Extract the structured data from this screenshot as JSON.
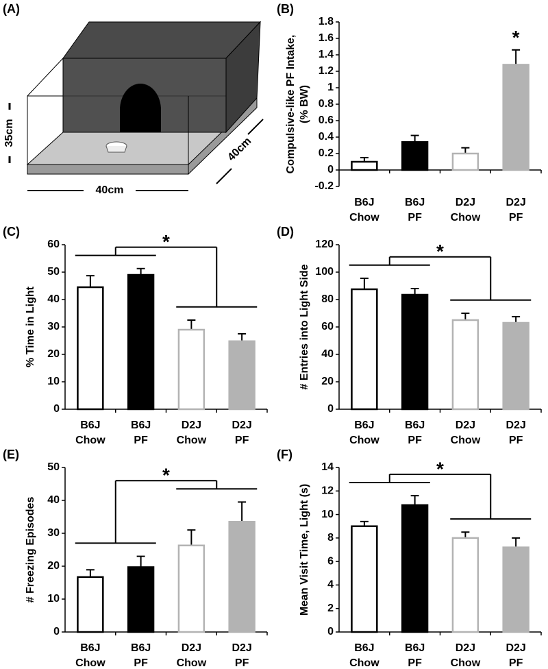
{
  "panel_a": {
    "label": "(A)",
    "height_label": "35cm",
    "width_label": "40cm",
    "depth_label": "40cm"
  },
  "chart_data": [
    {
      "type": "bar",
      "panel": "(B)",
      "ylabel": [
        "Compulsive-like PF Intake,",
        "(% BW)"
      ],
      "categories": [
        [
          "B6J",
          "Chow"
        ],
        [
          "B6J",
          "PF"
        ],
        [
          "D2J",
          "Chow"
        ],
        [
          "D2J",
          "PF"
        ]
      ],
      "values": [
        0.1,
        0.34,
        0.2,
        1.28
      ],
      "errors": [
        0.05,
        0.08,
        0.07,
        0.18
      ],
      "fill_colors": [
        "#ffffff",
        "#000000",
        "#ffffff",
        "#b3b3b3"
      ],
      "edge_colors": [
        "#000000",
        "#000000",
        "#b3b3b3",
        "#b3b3b3"
      ],
      "ylim": [
        -0.2,
        1.8
      ],
      "yticks": [
        -0.2,
        0,
        0.2,
        0.4,
        0.6,
        0.8,
        1,
        1.2,
        1.4,
        1.6,
        1.8
      ],
      "annotation": "*",
      "annotation_target": "bar"
    },
    {
      "type": "bar",
      "panel": "(C)",
      "ylabel": [
        "% Time in Light"
      ],
      "categories": [
        [
          "B6J",
          "Chow"
        ],
        [
          "B6J",
          "PF"
        ],
        [
          "D2J",
          "Chow"
        ],
        [
          "D2J",
          "PF"
        ]
      ],
      "values": [
        44.5,
        49,
        29,
        24.8
      ],
      "errors": [
        4.2,
        2.3,
        3.5,
        2.7
      ],
      "fill_colors": [
        "#ffffff",
        "#000000",
        "#ffffff",
        "#b3b3b3"
      ],
      "edge_colors": [
        "#000000",
        "#000000",
        "#b3b3b3",
        "#b3b3b3"
      ],
      "ylim": [
        0,
        60
      ],
      "yticks": [
        0,
        10,
        20,
        30,
        40,
        50,
        60
      ],
      "annotation": "*",
      "annotation_target": "groups"
    },
    {
      "type": "bar",
      "panel": "(D)",
      "ylabel": [
        "# Entries into Light Side"
      ],
      "categories": [
        [
          "B6J",
          "Chow"
        ],
        [
          "B6J",
          "PF"
        ],
        [
          "D2J",
          "Chow"
        ],
        [
          "D2J",
          "PF"
        ]
      ],
      "values": [
        87.5,
        83.5,
        65,
        63
      ],
      "errors": [
        8,
        4.5,
        5,
        4.5
      ],
      "fill_colors": [
        "#ffffff",
        "#000000",
        "#ffffff",
        "#b3b3b3"
      ],
      "edge_colors": [
        "#000000",
        "#000000",
        "#b3b3b3",
        "#b3b3b3"
      ],
      "ylim": [
        0,
        120
      ],
      "yticks": [
        0,
        20,
        40,
        60,
        80,
        100,
        120
      ],
      "annotation": "*",
      "annotation_target": "groups"
    },
    {
      "type": "bar",
      "panel": "(E)",
      "ylabel": [
        "# Freezing Episodes"
      ],
      "categories": [
        [
          "B6J",
          "Chow"
        ],
        [
          "B6J",
          "PF"
        ],
        [
          "D2J",
          "Chow"
        ],
        [
          "D2J",
          "PF"
        ]
      ],
      "values": [
        16.7,
        19.7,
        26.3,
        33.5
      ],
      "errors": [
        2.2,
        3.3,
        4.7,
        6
      ],
      "fill_colors": [
        "#ffffff",
        "#000000",
        "#ffffff",
        "#b3b3b3"
      ],
      "edge_colors": [
        "#000000",
        "#000000",
        "#b3b3b3",
        "#b3b3b3"
      ],
      "ylim": [
        0,
        50
      ],
      "yticks": [
        0,
        10,
        20,
        30,
        40,
        50
      ],
      "annotation": "*",
      "annotation_target": "groups"
    },
    {
      "type": "bar",
      "panel": "(F)",
      "ylabel": [
        "Mean Visit Time, Light (s)"
      ],
      "categories": [
        [
          "B6J",
          "Chow"
        ],
        [
          "B6J",
          "PF"
        ],
        [
          "D2J",
          "Chow"
        ],
        [
          "D2J",
          "PF"
        ]
      ],
      "values": [
        9,
        10.8,
        8,
        7.2
      ],
      "errors": [
        0.4,
        0.8,
        0.5,
        0.8
      ],
      "fill_colors": [
        "#ffffff",
        "#000000",
        "#ffffff",
        "#b3b3b3"
      ],
      "edge_colors": [
        "#000000",
        "#000000",
        "#b3b3b3",
        "#b3b3b3"
      ],
      "ylim": [
        0,
        14
      ],
      "yticks": [
        0,
        2,
        4,
        6,
        8,
        10,
        12,
        14
      ],
      "annotation": "*",
      "annotation_target": "groups"
    }
  ]
}
